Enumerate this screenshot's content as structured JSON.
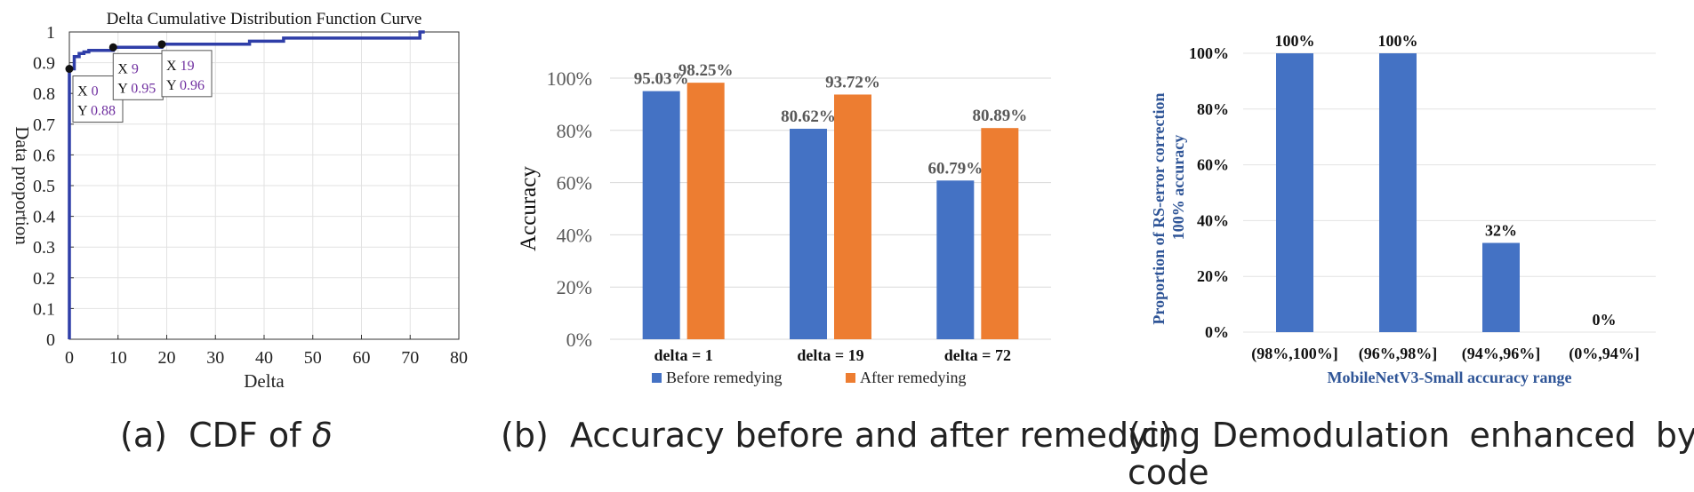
{
  "colors": {
    "cdf_line": "#2f3ea8",
    "blue": "#4472c4",
    "orange": "#ed7d31",
    "axis_text": "#222222",
    "label_gray": "#595959",
    "title_blue": "#2f5597",
    "datatip_value": "#7030a0"
  },
  "captions": {
    "a_prefix": "(a)",
    "a_text": "CDF of",
    "a_symbol": "δ",
    "b_prefix": "(b)",
    "b_text": "Accuracy before and after remedying",
    "c_prefix": "(c)",
    "c_line1": "Demodulation enhanced by RS",
    "c_line2": "code"
  },
  "chart_data": [
    {
      "type": "line",
      "id": "cdf",
      "title": "Delta Cumulative Distribution Function Curve",
      "xlabel": "Delta",
      "ylabel": "Data proportion",
      "xlim": [
        0,
        80
      ],
      "ylim": [
        0,
        1
      ],
      "xticks": [
        0,
        10,
        20,
        30,
        40,
        50,
        60,
        70,
        80
      ],
      "yticks": [
        0,
        0.1,
        0.2,
        0.3,
        0.4,
        0.5,
        0.6,
        0.7,
        0.8,
        0.9,
        1
      ],
      "ytick_labels": [
        "0",
        "0.1",
        "0.2",
        "0.3",
        "0.4",
        "0.5",
        "0.6",
        "0.7",
        "0.8",
        "0.9",
        "1"
      ],
      "grid": true,
      "series": [
        {
          "name": "CDF",
          "x": [
            0,
            0,
            1,
            1,
            2,
            2,
            3,
            3,
            4,
            4,
            9,
            9,
            19,
            19,
            37,
            37,
            44,
            44,
            72,
            72,
            73
          ],
          "y": [
            0,
            0.88,
            0.88,
            0.92,
            0.92,
            0.93,
            0.93,
            0.935,
            0.935,
            0.94,
            0.94,
            0.95,
            0.95,
            0.96,
            0.96,
            0.97,
            0.97,
            0.98,
            0.98,
            1.0,
            1.0
          ]
        }
      ],
      "datatips": [
        {
          "x": 0,
          "y": 0.88,
          "x_label": "X",
          "x_value": "0",
          "y_label": "Y",
          "y_value": "0.88"
        },
        {
          "x": 9,
          "y": 0.95,
          "x_label": "X",
          "x_value": "9",
          "y_label": "Y",
          "y_value": "0.95"
        },
        {
          "x": 19,
          "y": 0.96,
          "x_label": "X",
          "x_value": "19",
          "y_label": "Y",
          "y_value": "0.96"
        }
      ]
    },
    {
      "type": "bar",
      "id": "accuracy",
      "title": "",
      "xlabel": "",
      "ylabel": "Accuracy",
      "categories": [
        "delta = 1",
        "delta = 19",
        "delta = 72"
      ],
      "ylim": [
        0,
        100
      ],
      "yticks": [
        0,
        20,
        40,
        60,
        80,
        100
      ],
      "ytick_labels": [
        "0%",
        "20%",
        "40%",
        "60%",
        "80%",
        "100%"
      ],
      "series": [
        {
          "name": "Before remedying",
          "values": [
            95.03,
            80.62,
            60.79
          ],
          "labels": [
            "95.03%",
            "80.62%",
            "60.79%"
          ]
        },
        {
          "name": "After remedying",
          "values": [
            98.25,
            93.72,
            80.89
          ],
          "labels": [
            "98.25%",
            "93.72%",
            "80.89%"
          ]
        }
      ],
      "legend": "bottom"
    },
    {
      "type": "bar",
      "id": "rs",
      "title": "",
      "xlabel": "MobileNetV3-Small accuracy range",
      "ylabel_line1": "Proportion of  RS-error correction",
      "ylabel_line2": "100% accuracy",
      "categories": [
        "(98%,100%]",
        "(96%,98%]",
        "(94%,96%]",
        "(0%,94%]"
      ],
      "ylim": [
        0,
        100
      ],
      "yticks": [
        0,
        20,
        40,
        60,
        80,
        100
      ],
      "ytick_labels": [
        "0%",
        "20%",
        "40%",
        "60%",
        "80%",
        "100%"
      ],
      "series": [
        {
          "name": "Proportion",
          "values": [
            100,
            100,
            32,
            0
          ],
          "labels": [
            "100%",
            "100%",
            "32%",
            "0%"
          ]
        }
      ]
    }
  ]
}
